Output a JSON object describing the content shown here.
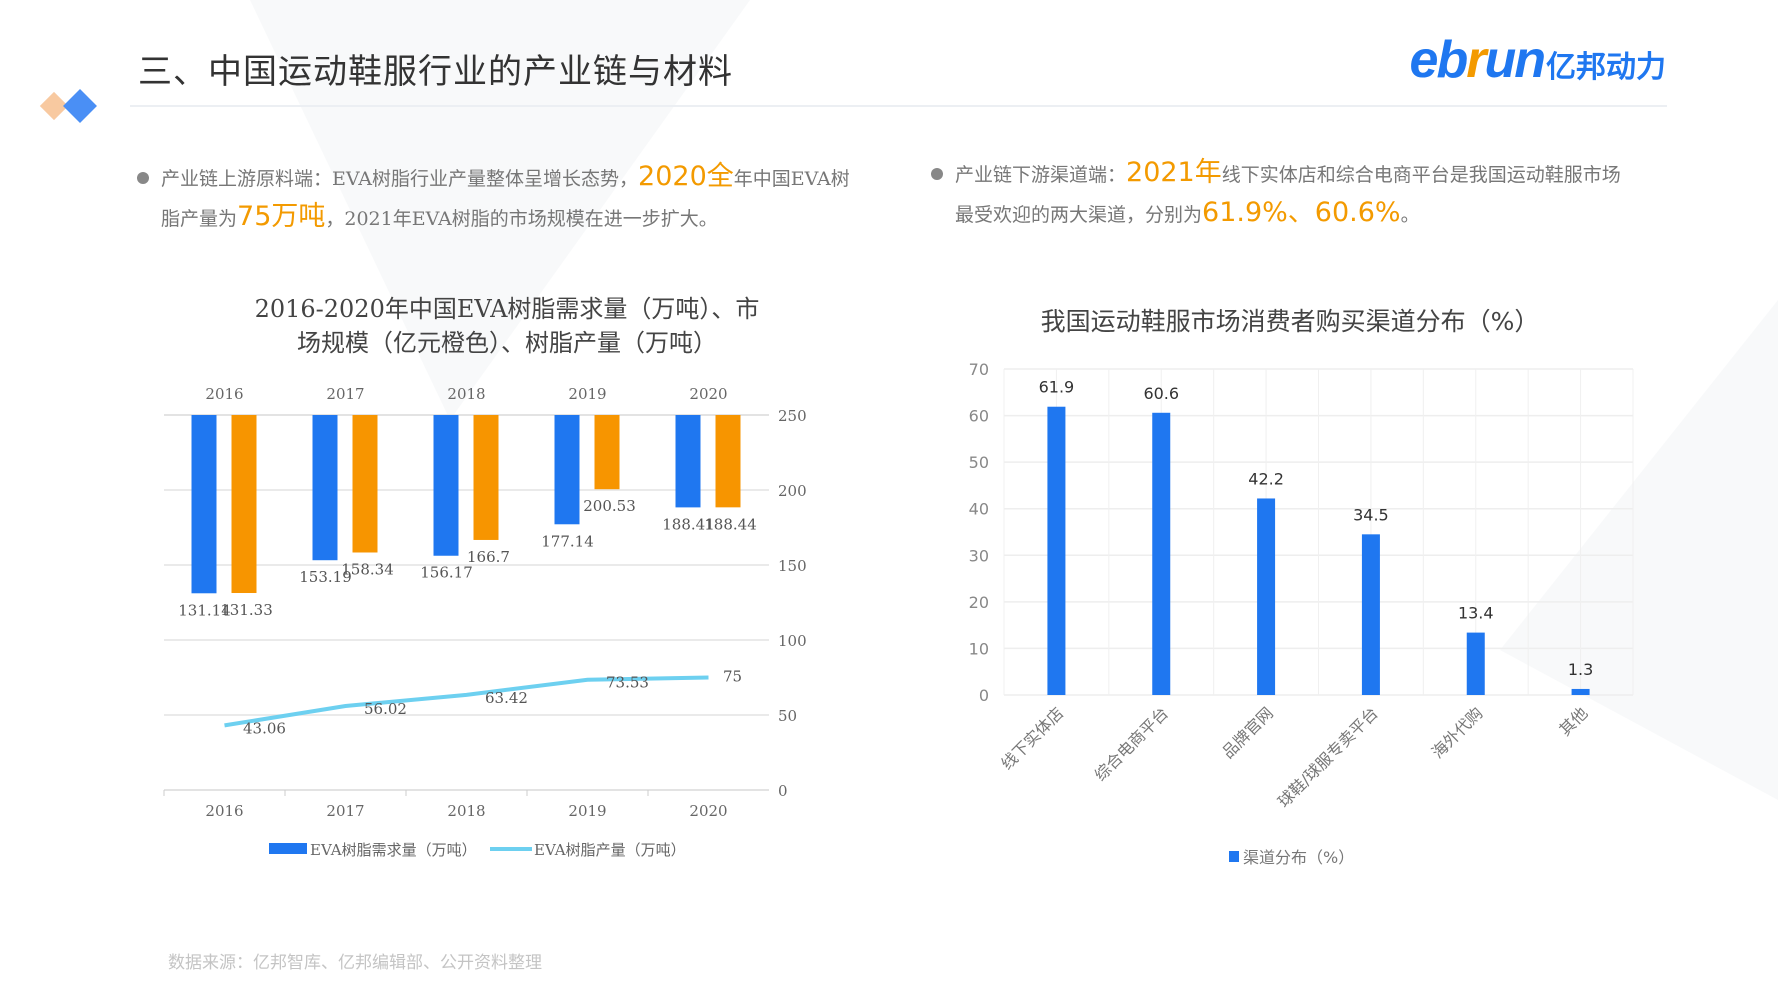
{
  "header": {
    "title": "三、中国运动鞋服行业的产业链与材料",
    "logo_latin_pre": "eb",
    "logo_latin_r": "r",
    "logo_latin_post": "un",
    "logo_cn": "亿邦动力"
  },
  "colors": {
    "blue": "#1f77f0",
    "orange": "#f79500",
    "line": "#6dd0f0",
    "accent": "#f39a00"
  },
  "left_text": {
    "a": "产业链上游原料端：EVA树脂行业产量整体呈增长态势，",
    "b": "2020全",
    "c": "年中国EVA树脂产量为",
    "d": "75万吨",
    "e": "，2021年EVA树脂的市场规模在进一步扩大。"
  },
  "right_text": {
    "a": "产业链下游渠道端：",
    "b": "2021年",
    "c": "线下实体店和综合电商平台是我国运动鞋服市场最受欢迎的两大渠道，分别为",
    "d": "61.9%、60.6%",
    "e": "。"
  },
  "footer": "数据来源：亿邦智库、亿邦编辑部、公开资料整理",
  "chart_data": [
    {
      "type": "bar+line",
      "title_line1": "2016-2020年中国EVA树脂需求量（万吨）、市",
      "title_line2": "场规模（亿元橙色）、树脂产量（万吨）",
      "categories": [
        "2016",
        "2017",
        "2018",
        "2019",
        "2020"
      ],
      "ylim": [
        0,
        250
      ],
      "yticks": [
        "0",
        "50",
        "100",
        "150",
        "200",
        "250"
      ],
      "series": [
        {
          "name": "EVA树脂需求量（万吨）",
          "kind": "bar",
          "values": [
            131.14,
            153.19,
            156.17,
            177.14,
            188.41
          ],
          "labels": [
            "131.14",
            "153.19",
            "156.17",
            "177.14",
            "188.41"
          ]
        },
        {
          "kind": "bar",
          "values": [
            131.33,
            158.34,
            166.7,
            200.53,
            188.44
          ],
          "labels": [
            "131.33",
            "158.34",
            "166.7",
            "200.53",
            "188.44"
          ]
        },
        {
          "name": "EVA树脂产量（万吨）",
          "kind": "line",
          "values": [
            43.06,
            56.02,
            63.42,
            73.53,
            75
          ],
          "labels": [
            "43.06",
            "56.02",
            "63.42",
            "73.53",
            "75"
          ]
        }
      ],
      "legend": "bottom",
      "grid": true
    },
    {
      "type": "bar",
      "title": "我国运动鞋服市场消费者购买渠道分布（%）",
      "categories": [
        "线下实体店",
        "综合电商平台",
        "品牌官网",
        "球鞋/球服专卖平台",
        "海外代购",
        "其他"
      ],
      "values": [
        61.9,
        60.6,
        42.2,
        34.5,
        13.4,
        1.3
      ],
      "labels": [
        "61.9",
        "60.6",
        "42.2",
        "34.5",
        "13.4",
        "1.3"
      ],
      "ylim": [
        0,
        70
      ],
      "yticks": [
        "0",
        "10",
        "20",
        "30",
        "40",
        "50",
        "60",
        "70"
      ],
      "series_name": "渠道分布（%）",
      "legend": "bottom",
      "grid": true
    }
  ]
}
